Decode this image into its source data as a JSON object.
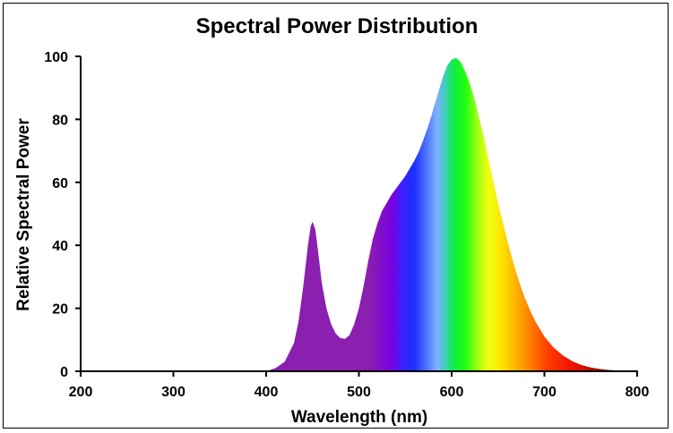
{
  "chart_data": {
    "type": "area",
    "title": "Spectral Power Distribution",
    "xlabel": "Wavelength (nm)",
    "ylabel": "Relative Spectral Power",
    "xlim": [
      200,
      800
    ],
    "ylim": [
      0,
      100
    ],
    "xticks": [
      "200",
      "300",
      "400",
      "500",
      "600",
      "700",
      "800"
    ],
    "yticks": [
      "0",
      "20",
      "40",
      "60",
      "80",
      "100"
    ],
    "grid": false,
    "legend": "none",
    "fill": "visible-spectrum gradient",
    "series": [
      {
        "x": [
          380,
          400,
          410,
          420,
          430,
          435,
          440,
          445,
          448,
          450,
          453,
          456,
          460,
          465,
          470,
          475,
          480,
          485,
          490,
          495,
          500,
          505,
          510,
          515,
          520,
          525,
          530,
          535,
          540,
          545,
          550,
          555,
          560,
          565,
          570,
          575,
          580,
          585,
          590,
          595,
          600,
          605,
          610,
          615,
          620,
          625,
          630,
          635,
          640,
          645,
          650,
          655,
          660,
          665,
          670,
          675,
          680,
          685,
          690,
          695,
          700,
          710,
          720,
          730,
          740,
          750,
          760,
          770,
          780,
          790,
          800
        ],
        "y": [
          0,
          0,
          1,
          3,
          9,
          16,
          27,
          40,
          46,
          47.5,
          45,
          38,
          28,
          20,
          15,
          12,
          10.5,
          10.3,
          11.5,
          15,
          20,
          27,
          35,
          42,
          47,
          51,
          53.5,
          56,
          58,
          60,
          62,
          64.5,
          67,
          70,
          74,
          78,
          83,
          88,
          93,
          97,
          99,
          99.5,
          98,
          95,
          91,
          86,
          80,
          74,
          67,
          60,
          53.5,
          47.5,
          41.5,
          36,
          31,
          26.5,
          22.5,
          19,
          16,
          13.5,
          11,
          7.5,
          5,
          3.2,
          2,
          1.2,
          0.7,
          0.4,
          0.2,
          0.1,
          0
        ]
      }
    ]
  }
}
